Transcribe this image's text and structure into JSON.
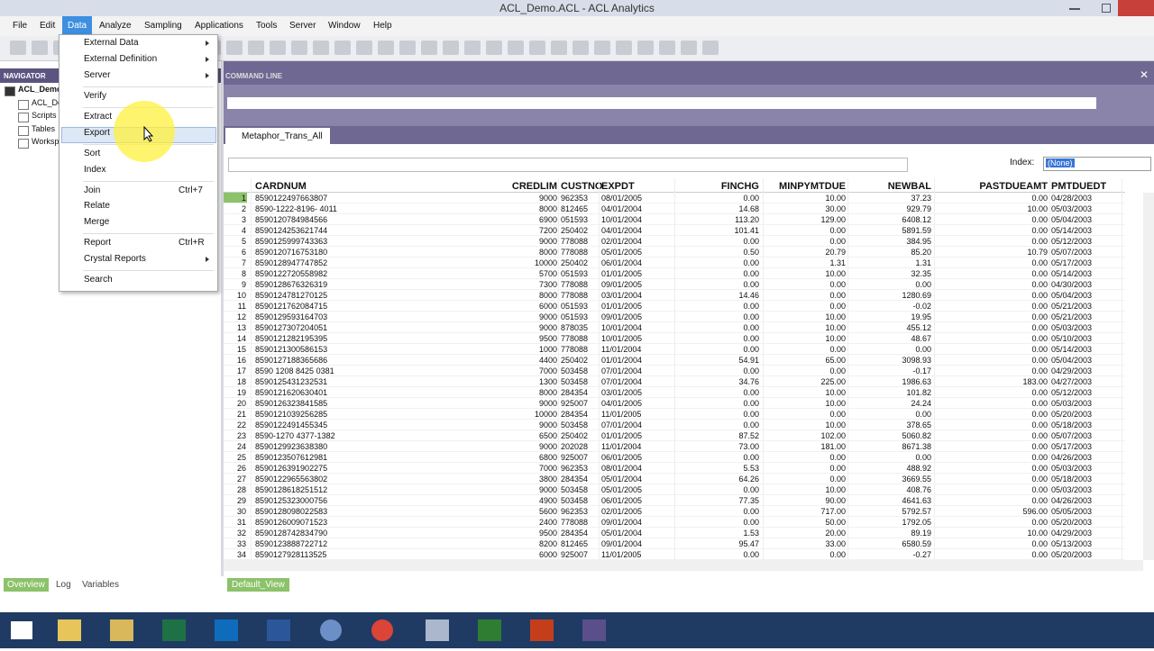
{
  "window": {
    "title": "ACL_Demo.ACL - ACL Analytics"
  },
  "menubar": [
    "File",
    "Edit",
    "Data",
    "Analyze",
    "Sampling",
    "Applications",
    "Tools",
    "Server",
    "Window",
    "Help"
  ],
  "data_menu": {
    "items": [
      {
        "label": "External Data",
        "submenu": true
      },
      {
        "label": "External Definition",
        "submenu": true
      },
      {
        "label": "Server",
        "submenu": true
      },
      {
        "label": "Verify"
      },
      {
        "label": "Extract"
      },
      {
        "label": "Export",
        "highlighted": true
      },
      {
        "label": "Sort"
      },
      {
        "label": "Index"
      },
      {
        "label": "Join",
        "shortcut": "Ctrl+7"
      },
      {
        "label": "Relate"
      },
      {
        "label": "Merge"
      },
      {
        "label": "Report",
        "shortcut": "Ctrl+R"
      },
      {
        "label": "Crystal Reports",
        "submenu": true
      },
      {
        "label": "Search"
      }
    ]
  },
  "navigator": {
    "title": "NAVIGATOR",
    "items": [
      "ACL_Demo",
      "ACL_De",
      "Scripts",
      "Tables",
      "Worksp"
    ]
  },
  "command_line": {
    "title": "COMMAND LINE"
  },
  "view": {
    "tab": "Metaphor_Trans_All",
    "index_label": "Index:",
    "index_value": "(None)",
    "columns": [
      "CARDNUM",
      "CREDLIM",
      "CUSTNO",
      "EXPDT",
      "FINCHG",
      "MINPYMTDUE",
      "NEWBAL",
      "PASTDUEAMT",
      "PMTDUEDT"
    ],
    "rows": [
      [
        "1",
        "8590122497663807",
        "9000",
        "962353",
        "08/01/2005",
        "0.00",
        "10.00",
        "37.23",
        "0.00",
        "04/28/2003"
      ],
      [
        "2",
        "8590-1222-8196- 4011",
        "8000",
        "812465",
        "04/01/2004",
        "14.68",
        "30.00",
        "929.79",
        "10.00",
        "05/03/2003"
      ],
      [
        "3",
        "8590120784984566",
        "6900",
        "051593",
        "10/01/2004",
        "113.20",
        "129.00",
        "6408.12",
        "0.00",
        "05/04/2003"
      ],
      [
        "4",
        "8590124253621744",
        "7200",
        "250402",
        "04/01/2004",
        "101.41",
        "0.00",
        "5891.59",
        "0.00",
        "05/14/2003"
      ],
      [
        "5",
        "8590125999743363",
        "9000",
        "778088",
        "02/01/2004",
        "0.00",
        "0.00",
        "384.95",
        "0.00",
        "05/12/2003"
      ],
      [
        "6",
        "8590120716753180",
        "8000",
        "778088",
        "05/01/2005",
        "0.50",
        "20.79",
        "85.20",
        "10.79",
        "05/07/2003"
      ],
      [
        "7",
        "8590128947747852",
        "10000",
        "250402",
        "06/01/2004",
        "0.00",
        "1.31",
        "1.31",
        "0.00",
        "05/17/2003"
      ],
      [
        "8",
        "8590122720558982",
        "5700",
        "051593",
        "01/01/2005",
        "0.00",
        "10.00",
        "32.35",
        "0.00",
        "05/14/2003"
      ],
      [
        "9",
        "8590128676326319",
        "7300",
        "778088",
        "09/01/2005",
        "0.00",
        "0.00",
        "0.00",
        "0.00",
        "04/30/2003"
      ],
      [
        "10",
        "8590124781270125",
        "8000",
        "778088",
        "03/01/2004",
        "14.46",
        "0.00",
        "1280.69",
        "0.00",
        "05/04/2003"
      ],
      [
        "11",
        "8590121762084715",
        "6000",
        "051593",
        "01/01/2005",
        "0.00",
        "0.00",
        "-0.02",
        "0.00",
        "05/21/2003"
      ],
      [
        "12",
        "8590129593164703",
        "9000",
        "051593",
        "09/01/2005",
        "0.00",
        "10.00",
        "19.95",
        "0.00",
        "05/21/2003"
      ],
      [
        "13",
        "8590127307204051",
        "9000",
        "878035",
        "10/01/2004",
        "0.00",
        "10.00",
        "455.12",
        "0.00",
        "05/03/2003"
      ],
      [
        "14",
        "8590121282195395",
        "9500",
        "778088",
        "10/01/2005",
        "0.00",
        "10.00",
        "48.67",
        "0.00",
        "05/10/2003"
      ],
      [
        "15",
        "8590121300586153",
        "1000",
        "778088",
        "11/01/2004",
        "0.00",
        "0.00",
        "0.00",
        "0.00",
        "05/14/2003"
      ],
      [
        "16",
        "8590127188365686",
        "4400",
        "250402",
        "01/01/2004",
        "54.91",
        "65.00",
        "3098.93",
        "0.00",
        "05/04/2003"
      ],
      [
        "17",
        "8590 1208 8425 0381",
        "7000",
        "503458",
        "07/01/2004",
        "0.00",
        "0.00",
        "-0.17",
        "0.00",
        "04/29/2003"
      ],
      [
        "18",
        "8590125431232531",
        "1300",
        "503458",
        "07/01/2004",
        "34.76",
        "225.00",
        "1986.63",
        "183.00",
        "04/27/2003"
      ],
      [
        "19",
        "8590121620630401",
        "8000",
        "284354",
        "03/01/2005",
        "0.00",
        "10.00",
        "101.82",
        "0.00",
        "05/12/2003"
      ],
      [
        "20",
        "8590126323841585",
        "9000",
        "925007",
        "04/01/2005",
        "0.00",
        "10.00",
        "24.24",
        "0.00",
        "05/03/2003"
      ],
      [
        "21",
        "8590121039256285",
        "10000",
        "284354",
        "11/01/2005",
        "0.00",
        "0.00",
        "0.00",
        "0.00",
        "05/20/2003"
      ],
      [
        "22",
        "8590122491455345",
        "9000",
        "503458",
        "07/01/2004",
        "0.00",
        "10.00",
        "378.65",
        "0.00",
        "05/18/2003"
      ],
      [
        "23",
        "8590-1270 4377-1382",
        "6500",
        "250402",
        "01/01/2005",
        "87.52",
        "102.00",
        "5060.82",
        "0.00",
        "05/07/2003"
      ],
      [
        "24",
        "8590129923638380",
        "9000",
        "202028",
        "11/01/2004",
        "73.00",
        "181.00",
        "8671.38",
        "0.00",
        "05/17/2003"
      ],
      [
        "25",
        "8590123507612981",
        "6800",
        "925007",
        "06/01/2005",
        "0.00",
        "0.00",
        "0.00",
        "0.00",
        "04/26/2003"
      ],
      [
        "26",
        "8590126391902275",
        "7000",
        "962353",
        "08/01/2004",
        "5.53",
        "0.00",
        "488.92",
        "0.00",
        "05/03/2003"
      ],
      [
        "27",
        "8590122965563802",
        "3800",
        "284354",
        "05/01/2004",
        "64.26",
        "0.00",
        "3669.55",
        "0.00",
        "05/18/2003"
      ],
      [
        "28",
        "8590128618251512",
        "9000",
        "503458",
        "05/01/2005",
        "0.00",
        "10.00",
        "408.76",
        "0.00",
        "05/03/2003"
      ],
      [
        "29",
        "8590125323000756",
        "4900",
        "503458",
        "06/01/2005",
        "77.35",
        "90.00",
        "4641.63",
        "0.00",
        "04/26/2003"
      ],
      [
        "30",
        "8590128098022583",
        "5600",
        "962353",
        "02/01/2005",
        "0.00",
        "717.00",
        "5792.57",
        "596.00",
        "05/05/2003"
      ],
      [
        "31",
        "8590126009071523",
        "2400",
        "778088",
        "09/01/2004",
        "0.00",
        "50.00",
        "1792.05",
        "0.00",
        "05/20/2003"
      ],
      [
        "32",
        "8590128742834790",
        "9500",
        "284354",
        "05/01/2004",
        "1.53",
        "20.00",
        "89.19",
        "10.00",
        "04/29/2003"
      ],
      [
        "33",
        "8590123888722712",
        "8200",
        "812465",
        "09/01/2004",
        "95.47",
        "33.00",
        "6580.59",
        "0.00",
        "05/13/2003"
      ],
      [
        "34",
        "8590127928113525",
        "6000",
        "925007",
        "11/01/2005",
        "0.00",
        "0.00",
        "-0.27",
        "0.00",
        "05/20/2003"
      ]
    ]
  },
  "bottom": {
    "tabs": [
      "Overview",
      "Log",
      "Variables"
    ],
    "view_tab": "Default_View"
  }
}
